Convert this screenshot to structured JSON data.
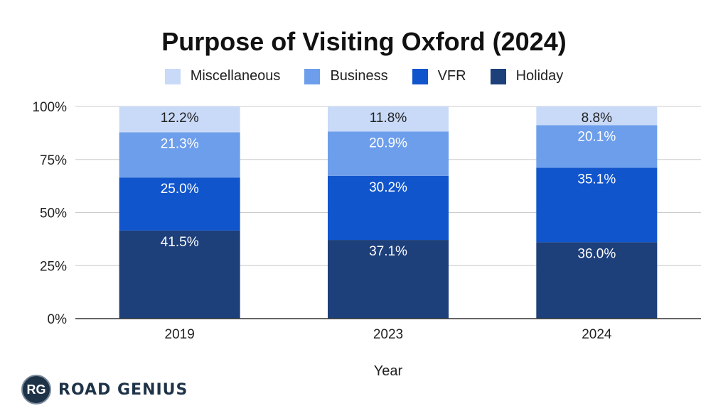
{
  "chart_data": {
    "type": "bar",
    "stacked": true,
    "title": "Purpose of Visiting Oxford (2024)",
    "xlabel": "Year",
    "ylabel": "",
    "categories": [
      "2019",
      "2023",
      "2024"
    ],
    "ylim": [
      0,
      100
    ],
    "yticks": [
      "0%",
      "25%",
      "50%",
      "75%",
      "100%"
    ],
    "grid": true,
    "legend_position": "top-center",
    "series": [
      {
        "name": "Holiday",
        "color": "#1d3f7a",
        "values": [
          41.5,
          37.1,
          36.0
        ],
        "labels": [
          "41.5%",
          "37.1%",
          "36.0%"
        ]
      },
      {
        "name": "VFR",
        "color": "#1155cc",
        "values": [
          25.0,
          30.2,
          35.1
        ],
        "labels": [
          "25.0%",
          "30.2%",
          "35.1%"
        ]
      },
      {
        "name": "Business",
        "color": "#6d9eeb",
        "values": [
          21.3,
          20.9,
          20.1
        ],
        "labels": [
          "21.3%",
          "20.9%",
          "20.1%"
        ]
      },
      {
        "name": "Miscellaneous",
        "color": "#c9daf8",
        "values": [
          12.2,
          11.8,
          8.8
        ],
        "labels": [
          "12.2%",
          "11.8%",
          "8.8%"
        ]
      }
    ],
    "legend_order": [
      "Miscellaneous",
      "Business",
      "VFR",
      "Holiday"
    ]
  },
  "brand": {
    "badge_text": "RG",
    "name": "ROAD GENIUS"
  }
}
